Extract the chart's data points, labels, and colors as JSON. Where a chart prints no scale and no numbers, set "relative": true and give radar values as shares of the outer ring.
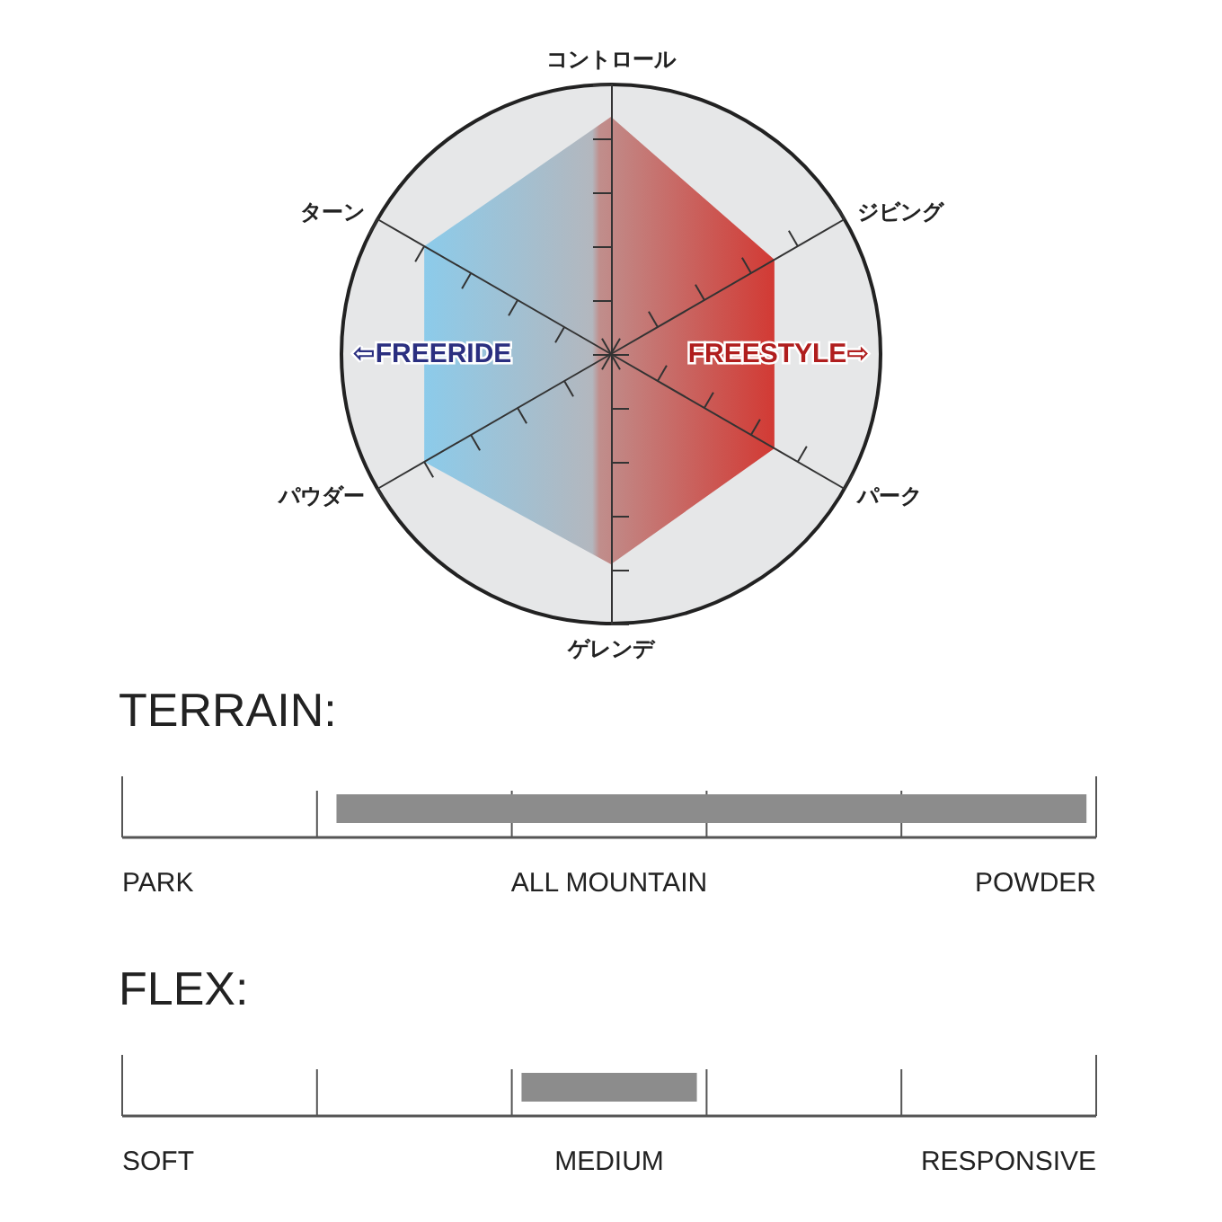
{
  "chart_data": [
    {
      "type": "radar",
      "relative": true,
      "categories": [
        "コントロール",
        "ジビング",
        "パーク",
        "ゲレンデ",
        "パウダー",
        "ターン"
      ],
      "series": [
        {
          "color": "#8ccbea",
          "values": [
            0.88,
            0.7,
            0.7,
            0.78,
            0.8,
            0.8
          ]
        }
      ],
      "marker": "none",
      "annotations": [
        "⇦FREERIDE",
        "FREESTYLE⇨"
      ]
    },
    {
      "type": "other",
      "title": "TERRAIN:",
      "annotations": [
        "PARK",
        "ALL MOUNTAIN",
        "POWDER"
      ]
    },
    {
      "type": "other",
      "title": "FLEX:",
      "annotations": [
        "SOFT",
        "MEDIUM",
        "RESPONSIVE"
      ]
    }
  ]
}
